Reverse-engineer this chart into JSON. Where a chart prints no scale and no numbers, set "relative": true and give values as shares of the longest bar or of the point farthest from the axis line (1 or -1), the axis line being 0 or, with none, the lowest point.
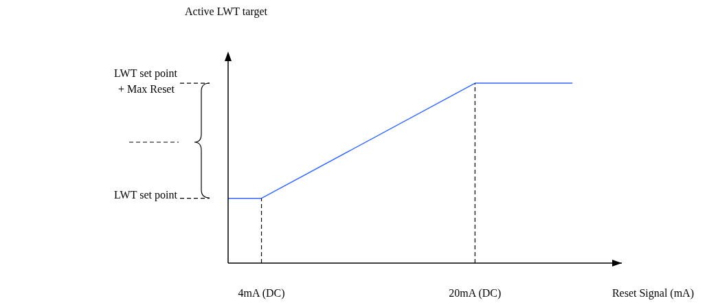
{
  "chart_data": {
    "type": "line",
    "relative": true,
    "annotations": [
      "Active LWT target"
    ],
    "xlabel": "Reset Signal (mA)",
    "xlim": [
      1.5,
      31
    ],
    "xticks": [
      {
        "value": 4,
        "label": "4mA (DC)"
      },
      {
        "value": 20,
        "label": "20mA (DC)"
      }
    ],
    "series": [
      {
        "color": "#3366ff",
        "x": [
          1.5,
          4,
          20,
          27.3
        ],
        "values": [
          0.36,
          0.36,
          1,
          1
        ]
      }
    ],
    "ref_lines": [
      {
        "axis": "y",
        "value": 0.36,
        "label": "LWT set point",
        "line_style": "dashed",
        "color": "#000000"
      },
      {
        "axis": "y",
        "value": 1,
        "label": "LWT set point + Max Reset",
        "line_style": "dashed",
        "color": "#000000"
      },
      {
        "axis": "x",
        "value": 4,
        "line_style": "dashed",
        "color": "#000000"
      },
      {
        "axis": "x",
        "value": 20,
        "line_style": "dashed",
        "color": "#000000"
      }
    ],
    "grid": false,
    "legend": false,
    "marker": "none",
    "line_style": "solid"
  }
}
